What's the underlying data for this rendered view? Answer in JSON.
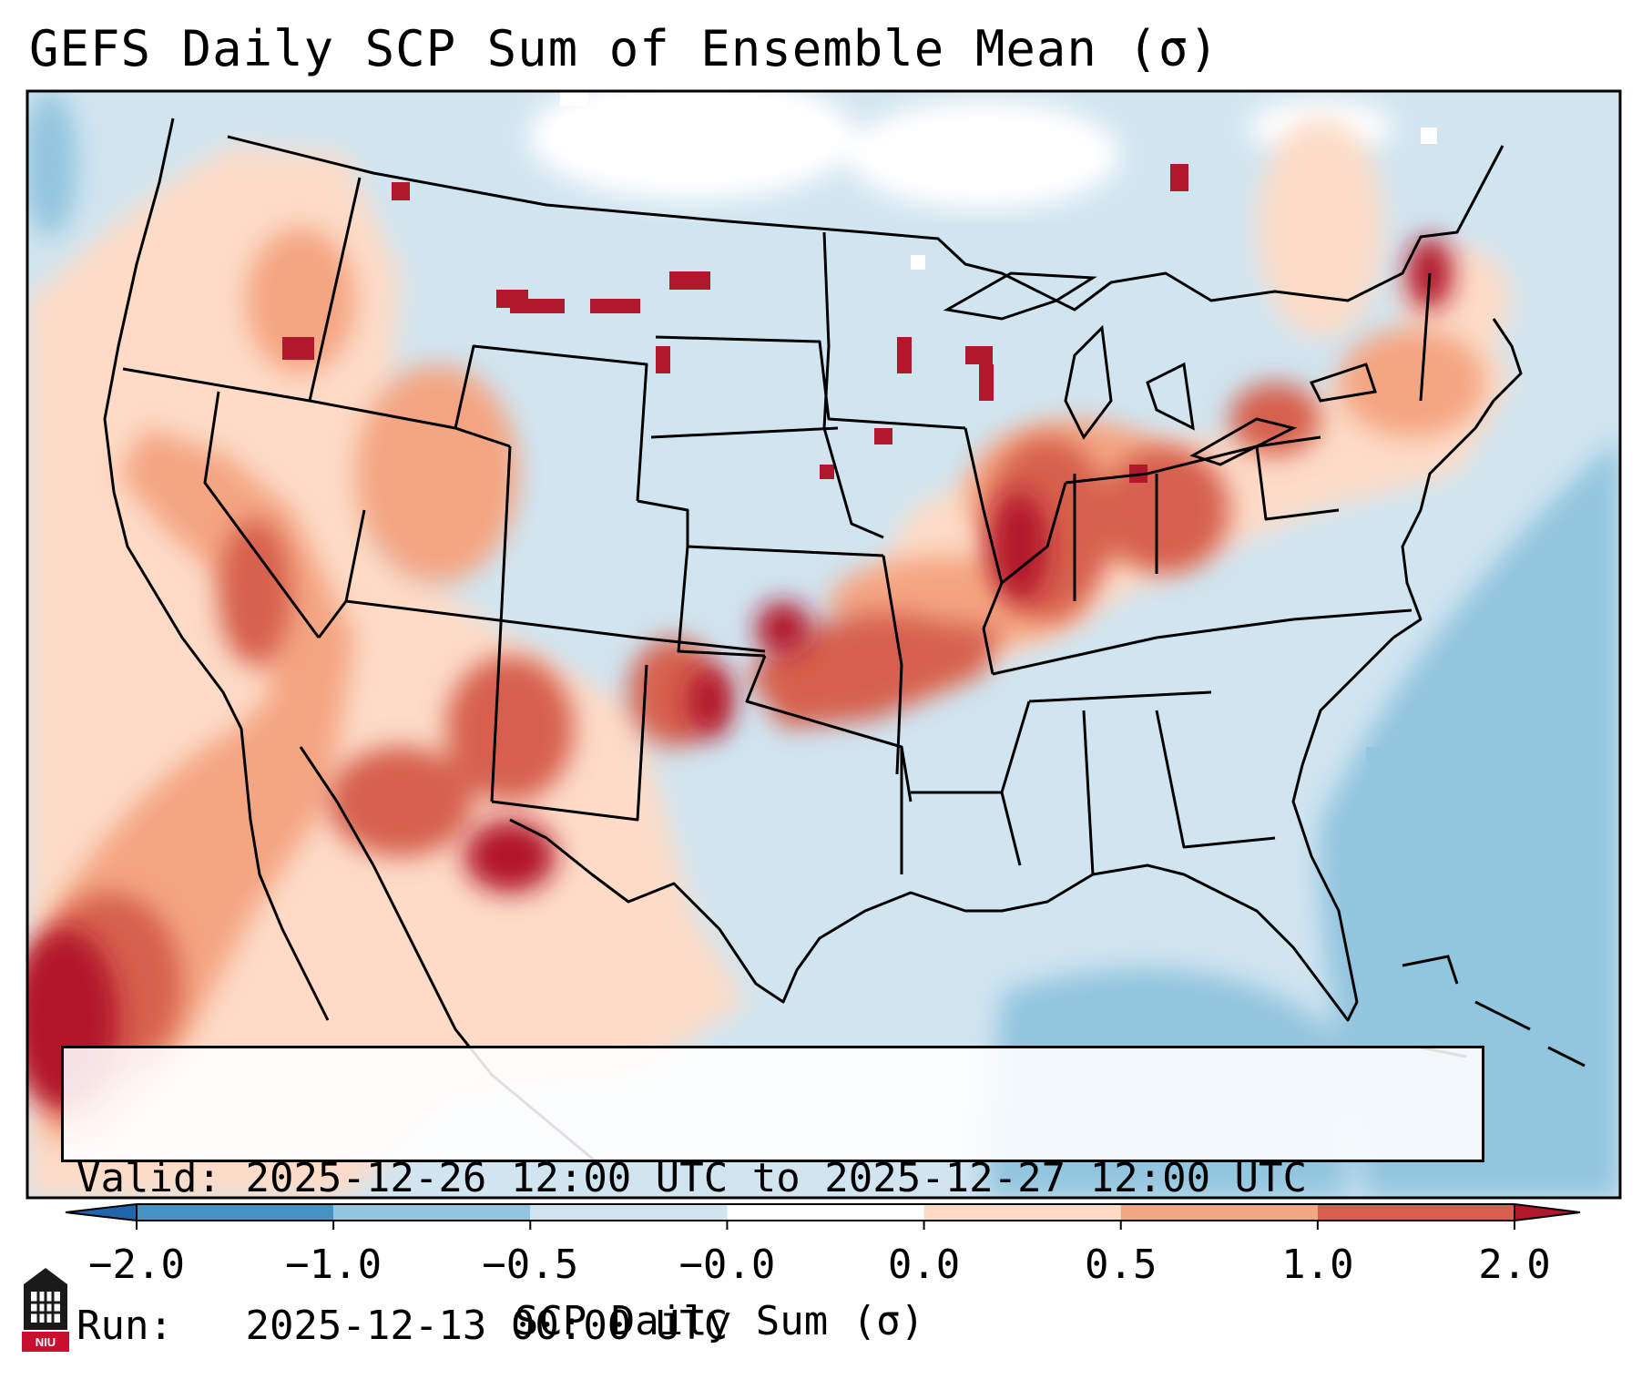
{
  "title": "GEFS Daily SCP Sum of Ensemble Mean (σ)",
  "info": {
    "valid_label": "Valid:",
    "valid_value": "2025-12-26 12:00 UTC to 2025-12-27 12:00 UTC",
    "run_label": "Run:",
    "run_value": "2025-12-13 00:00 UTC"
  },
  "colorbar": {
    "label": "SCP Daily Sum (σ)",
    "ticks": [
      "−2.0",
      "−1.0",
      "−0.5",
      "−0.0",
      "0.0",
      "0.5",
      "1.0",
      "2.0"
    ],
    "colors": {
      "below": "#2166ac",
      "bins": [
        "#4393c3",
        "#92c5de",
        "#d1e5f0",
        "#ffffff",
        "#fddbc7",
        "#f4a582",
        "#d6604d"
      ],
      "above": "#b2182b"
    }
  },
  "map": {
    "region": "CONUS",
    "high_anomaly_areas": [
      "Southern Plains",
      "Ohio Valley",
      "Mid-Mississippi Valley",
      "Desert Southwest",
      "Pacific Coast offshore"
    ],
    "low_anomaly_areas": [
      "Gulf of Mexico",
      "Western Atlantic",
      "Southeast US",
      "Northern Plains"
    ]
  },
  "logo": {
    "text": "NIU"
  }
}
